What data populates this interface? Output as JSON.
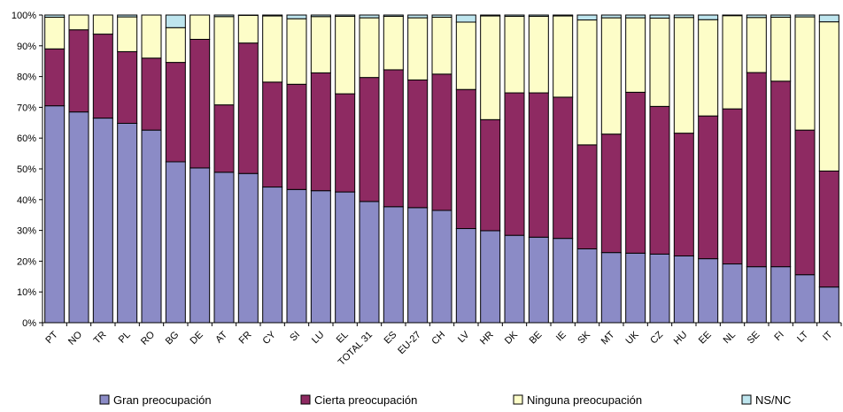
{
  "chart_data": {
    "type": "bar",
    "stacked": true,
    "percent_stacked": true,
    "categories": [
      "PT",
      "NO",
      "TR",
      "PL",
      "RO",
      "BG",
      "DE",
      "AT",
      "FR",
      "CY",
      "SI",
      "LU",
      "EL",
      "TOTAL 31",
      "ES",
      "EU-27",
      "CH",
      "LV",
      "HR",
      "DK",
      "BE",
      "IE",
      "SK",
      "MT",
      "UK",
      "CZ",
      "HU",
      "EE",
      "NL",
      "SE",
      "FI",
      "LT",
      "IT"
    ],
    "series": [
      {
        "name": "Gran preocupación",
        "color": "#8B8BC6",
        "values": [
          70.5,
          68.5,
          66.5,
          64.8,
          62.6,
          52.3,
          50.3,
          48.9,
          48.5,
          44.1,
          43.3,
          42.9,
          42.5,
          39.4,
          37.7,
          37.4,
          36.5,
          30.6,
          29.9,
          28.4,
          27.8,
          27.4,
          24.0,
          22.8,
          22.6,
          22.3,
          21.7,
          20.8,
          19.1,
          18.2,
          18.2,
          15.6,
          11.6
        ]
      },
      {
        "name": "Cierta preocupación",
        "color": "#8E2A62",
        "values": [
          18.5,
          26.7,
          27.3,
          23.3,
          23.4,
          32.3,
          41.8,
          21.9,
          42.4,
          34.1,
          34.2,
          38.3,
          31.9,
          40.3,
          44.5,
          41.5,
          44.3,
          45.2,
          36.1,
          46.3,
          46.9,
          45.9,
          33.8,
          38.5,
          52.3,
          48.0,
          39.9,
          46.4,
          50.4,
          63.1,
          60.3,
          47.0,
          37.7
        ]
      },
      {
        "name": "Ninguna preocupación",
        "color": "#FDFDC8",
        "values": [
          10.3,
          4.8,
          6.2,
          11.3,
          14.0,
          11.3,
          7.9,
          28.7,
          9.0,
          21.5,
          21.3,
          18.3,
          25.2,
          19.4,
          17.4,
          20.2,
          18.5,
          21.9,
          33.7,
          24.9,
          24.9,
          26.4,
          40.6,
          37.8,
          24.2,
          28.7,
          37.6,
          31.3,
          30.3,
          17.9,
          20.8,
          36.8,
          48.5
        ]
      },
      {
        "name": "NS/NC",
        "color": "#BEE5EE",
        "values": [
          0.7,
          0.0,
          0.0,
          0.6,
          0.0,
          4.1,
          0.0,
          0.5,
          0.1,
          0.3,
          1.2,
          0.5,
          0.4,
          0.9,
          0.4,
          0.9,
          0.7,
          2.3,
          0.3,
          0.4,
          0.4,
          0.3,
          1.6,
          0.9,
          0.9,
          1.0,
          0.8,
          1.5,
          0.2,
          0.8,
          0.7,
          0.6,
          2.2
        ]
      }
    ],
    "ylim": [
      0,
      100
    ],
    "yticks": [
      "0%",
      "10%",
      "20%",
      "30%",
      "40%",
      "50%",
      "60%",
      "70%",
      "80%",
      "90%",
      "100%"
    ],
    "grid": false,
    "legend_position": "bottom"
  }
}
